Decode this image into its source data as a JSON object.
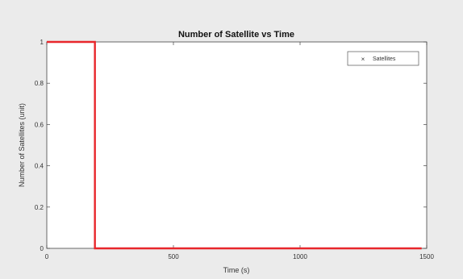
{
  "chart_data": {
    "type": "line",
    "title": "Number of Satellite vs Time",
    "xlabel": "Time (s)",
    "ylabel": "Number of Satellites (unit)",
    "xlim": [
      0,
      1500
    ],
    "ylim": [
      0,
      1
    ],
    "xticks": [
      0,
      500,
      1000,
      1500
    ],
    "yticks": [
      0,
      0.2,
      0.4,
      0.6,
      0.8,
      1
    ],
    "x_tick_labels": [
      "0",
      "500",
      "1000",
      "1500"
    ],
    "y_tick_labels": [
      "0",
      "0.2",
      "0.4",
      "0.6",
      "0.8",
      "1"
    ],
    "grid": false,
    "legend_position": "top-right",
    "series": [
      {
        "name": "Satellites",
        "color": "#e8262b",
        "marker": "x",
        "x": [
          0,
          190,
          190,
          1480
        ],
        "y": [
          1,
          1,
          0,
          0
        ]
      }
    ]
  }
}
